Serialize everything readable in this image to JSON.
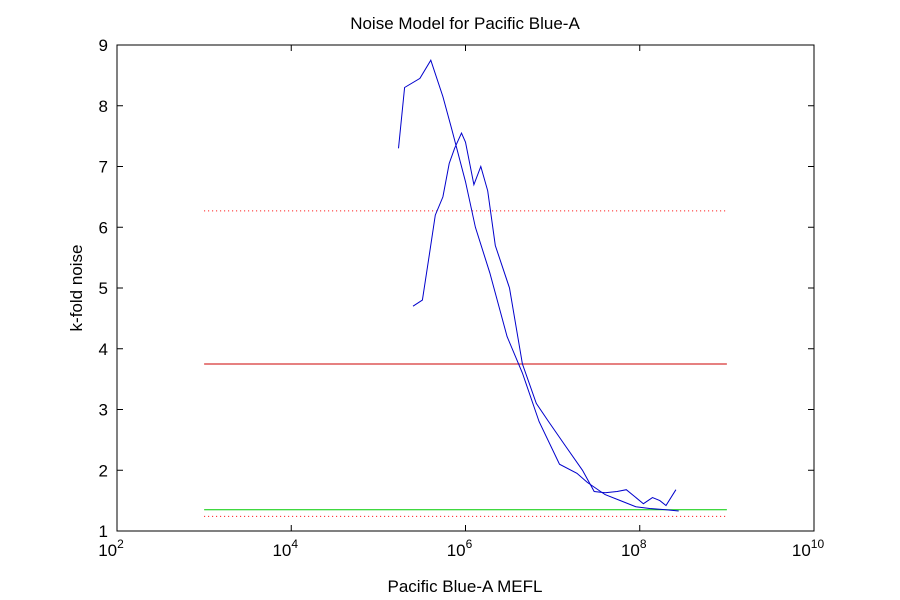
{
  "chart_data": {
    "type": "line",
    "title": "Noise Model for Pacific Blue-A",
    "xlabel": "Pacific Blue-A MEFL",
    "ylabel": "k-fold noise",
    "xscale": "log",
    "xlim": [
      100,
      10000000000
    ],
    "ylim": [
      1,
      9
    ],
    "grid": false,
    "x_ticks": [
      {
        "value": 100,
        "base": "10",
        "exp": "2"
      },
      {
        "value": 10000,
        "base": "10",
        "exp": "4"
      },
      {
        "value": 1000000,
        "base": "10",
        "exp": "6"
      },
      {
        "value": 100000000,
        "base": "10",
        "exp": "8"
      },
      {
        "value": 10000000000,
        "base": "10",
        "exp": "10"
      }
    ],
    "y_ticks": [
      "1",
      "2",
      "3",
      "4",
      "5",
      "6",
      "7",
      "8",
      "9"
    ],
    "colors": {
      "series": "#0000cc",
      "mean": "#cc0000",
      "bound": "#ff0000",
      "model": "#00cc00"
    },
    "series": [
      {
        "x": [
          170000,
          200000,
          300000,
          400000,
          550000,
          700000,
          1000000,
          1300000,
          1900000,
          3000000,
          4500000,
          7000000,
          12000000,
          19000000,
          25000000,
          40000000,
          60000000,
          90000000,
          130000000,
          200000000,
          280000000
        ],
        "y": [
          7.3,
          8.3,
          8.45,
          8.75,
          8.15,
          7.6,
          6.75,
          6.0,
          5.25,
          4.2,
          3.6,
          2.8,
          2.1,
          1.95,
          1.8,
          1.6,
          1.5,
          1.4,
          1.37,
          1.35,
          1.33
        ]
      },
      {
        "x": [
          250000,
          320000,
          380000,
          450000,
          550000,
          650000,
          750000,
          900000,
          1000000,
          1250000,
          1500000,
          1800000,
          2200000,
          3200000,
          4500000,
          6500000,
          9000000,
          14000000,
          22000000,
          30000000,
          40000000,
          55000000,
          70000000,
          110000000,
          140000000,
          170000000,
          200000000,
          260000000
        ],
        "y": [
          4.7,
          4.8,
          5.5,
          6.2,
          6.5,
          7.05,
          7.3,
          7.55,
          7.4,
          6.7,
          7.0,
          6.6,
          5.7,
          5.0,
          3.75,
          3.1,
          2.8,
          2.4,
          2.0,
          1.65,
          1.63,
          1.65,
          1.68,
          1.45,
          1.55,
          1.5,
          1.42,
          1.68
        ]
      }
    ],
    "hlines": [
      {
        "y": 3.75,
        "style": "solid",
        "color": "#cc0000",
        "x_range": [
          1000,
          1000000000
        ]
      },
      {
        "y": 6.27,
        "style": "dotted",
        "color": "#ff0000",
        "x_range": [
          1000,
          1000000000
        ]
      },
      {
        "y": 1.24,
        "style": "dotted",
        "color": "#ff0000",
        "x_range": [
          1000,
          1000000000
        ]
      },
      {
        "y": 1.35,
        "style": "solid",
        "color": "#00cc00",
        "x_range": [
          1000,
          1000000000
        ]
      }
    ]
  }
}
